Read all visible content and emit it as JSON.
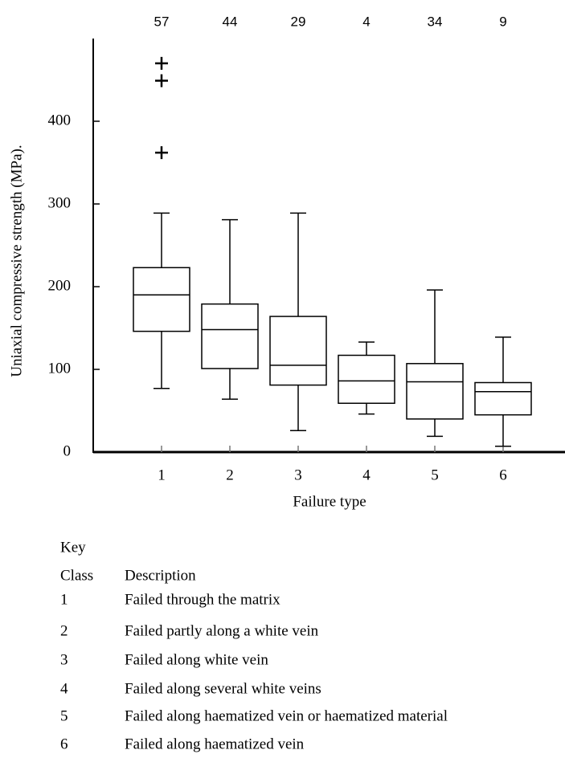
{
  "chart_data": {
    "type": "box",
    "y_label": "Uniaxial compressive strength (MPa).",
    "x_label": "Failure type",
    "categories": [
      "1",
      "2",
      "3",
      "4",
      "5",
      "6"
    ],
    "counts": [
      57,
      44,
      29,
      4,
      34,
      9
    ],
    "boxes": [
      {
        "whislo": 77,
        "q1": 146,
        "med": 190,
        "q3": 223,
        "whishi": 289,
        "fliers": [
          470,
          449,
          362
        ]
      },
      {
        "whislo": 64,
        "q1": 101,
        "med": 148,
        "q3": 179,
        "whishi": 281,
        "fliers": []
      },
      {
        "whislo": 26,
        "q1": 81,
        "med": 105,
        "q3": 164,
        "whishi": 289,
        "fliers": []
      },
      {
        "whislo": 46,
        "q1": 59,
        "med": 86,
        "q3": 117,
        "whishi": 133,
        "fliers": []
      },
      {
        "whislo": 19,
        "q1": 40,
        "med": 85,
        "q3": 107,
        "whishi": 196,
        "fliers": []
      },
      {
        "whislo": 7,
        "q1": 45,
        "med": 73,
        "q3": 84,
        "whishi": 139,
        "fliers": []
      }
    ],
    "color": "#000000",
    "ylim": [
      0,
      500
    ],
    "yticks": [
      0,
      100,
      200,
      300,
      400
    ]
  },
  "key": {
    "title": "Key",
    "header": [
      "Class",
      "Description"
    ],
    "rows": [
      [
        "1",
        "Failed through the matrix"
      ],
      [
        "2",
        "Failed partly along a white vein"
      ],
      [
        "3",
        "Failed along white vein"
      ],
      [
        "4",
        "Failed along several white veins"
      ],
      [
        "5",
        "Failed along haematized vein or haematized material"
      ],
      [
        "6",
        "Failed along haematized vein"
      ]
    ]
  }
}
